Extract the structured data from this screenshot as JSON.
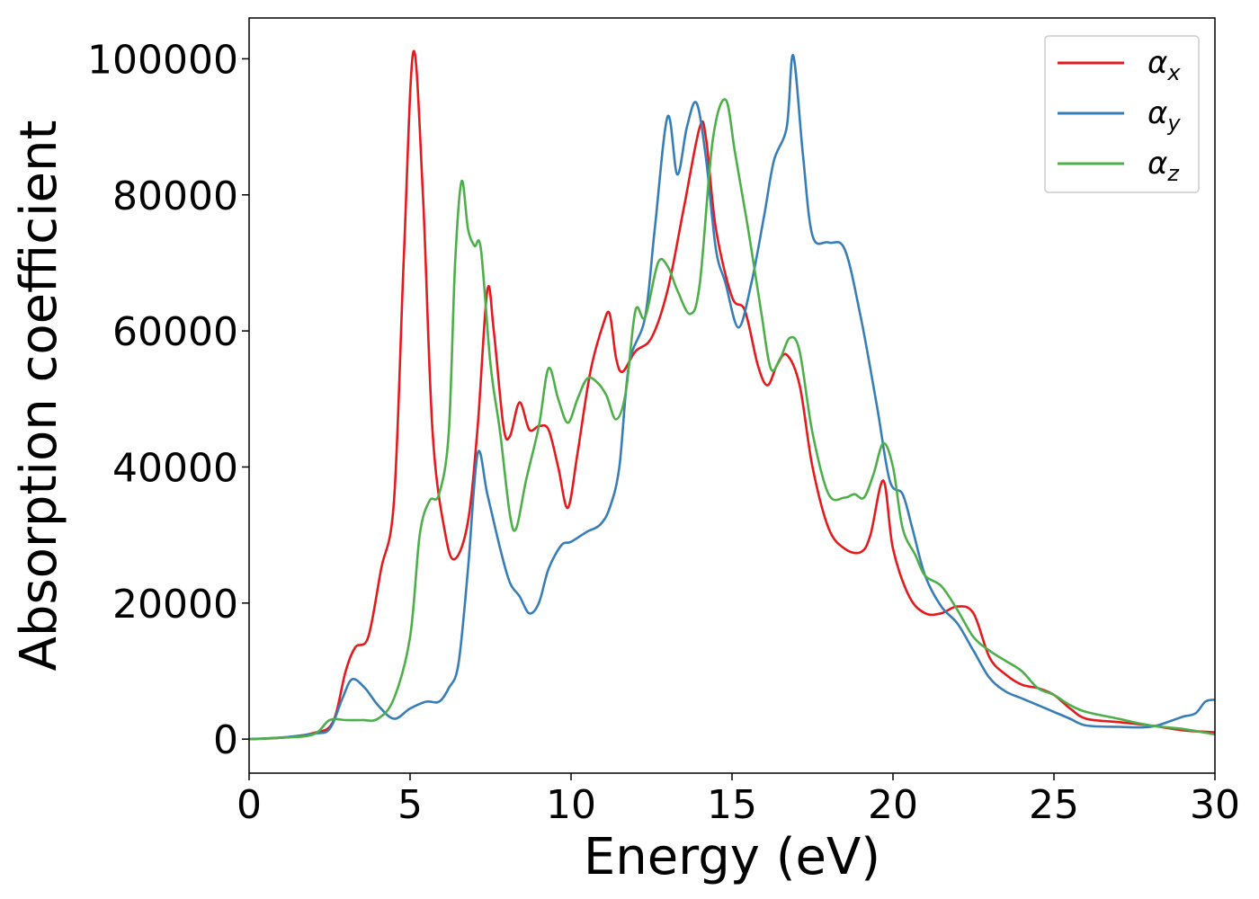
{
  "chart_data": {
    "type": "line",
    "title": "",
    "xlabel": "Energy (eV)",
    "ylabel": "Absorption coefficient",
    "xlim": [
      0,
      30
    ],
    "ylim": [
      -5000,
      106000
    ],
    "xticks": [
      0,
      5,
      10,
      15,
      20,
      25,
      30
    ],
    "yticks": [
      0,
      20000,
      40000,
      60000,
      80000,
      100000
    ],
    "grid": false,
    "legend": {
      "position": "top-right",
      "entries": [
        {
          "symbol": "α",
          "subscript": "x",
          "color": "#e41a1c"
        },
        {
          "symbol": "α",
          "subscript": "y",
          "color": "#377eb8"
        },
        {
          "symbol": "α",
          "subscript": "z",
          "color": "#4daf4a"
        }
      ]
    },
    "series": [
      {
        "name": "αx",
        "color": "#e41a1c",
        "points": [
          [
            0,
            0
          ],
          [
            1,
            200
          ],
          [
            2,
            900
          ],
          [
            2.6,
            2500
          ],
          [
            3,
            10000
          ],
          [
            3.3,
            13500
          ],
          [
            3.7,
            15000
          ],
          [
            4.1,
            25000
          ],
          [
            4.5,
            35000
          ],
          [
            4.8,
            70000
          ],
          [
            5.1,
            101000
          ],
          [
            5.4,
            80000
          ],
          [
            5.7,
            45000
          ],
          [
            6.1,
            30000
          ],
          [
            6.4,
            26500
          ],
          [
            6.8,
            32000
          ],
          [
            7.1,
            46000
          ],
          [
            7.4,
            66000
          ],
          [
            7.6,
            60000
          ],
          [
            7.9,
            46000
          ],
          [
            8.1,
            44500
          ],
          [
            8.4,
            49500
          ],
          [
            8.7,
            45500
          ],
          [
            9,
            46000
          ],
          [
            9.3,
            45500
          ],
          [
            9.6,
            40000
          ],
          [
            9.9,
            34000
          ],
          [
            10.2,
            42000
          ],
          [
            10.6,
            54000
          ],
          [
            11,
            61000
          ],
          [
            11.2,
            62500
          ],
          [
            11.4,
            56000
          ],
          [
            11.6,
            54000
          ],
          [
            12,
            57000
          ],
          [
            12.5,
            59000
          ],
          [
            13,
            66000
          ],
          [
            13.5,
            78000
          ],
          [
            14,
            90000
          ],
          [
            14.2,
            88000
          ],
          [
            14.5,
            75000
          ],
          [
            15,
            65000
          ],
          [
            15.4,
            63000
          ],
          [
            15.8,
            55000
          ],
          [
            16.1,
            52000
          ],
          [
            16.4,
            55000
          ],
          [
            16.7,
            56500
          ],
          [
            17.1,
            52000
          ],
          [
            17.5,
            40000
          ],
          [
            18,
            31000
          ],
          [
            18.5,
            28000
          ],
          [
            19,
            27500
          ],
          [
            19.3,
            30000
          ],
          [
            19.7,
            38000
          ],
          [
            20,
            28000
          ],
          [
            20.5,
            21000
          ],
          [
            21,
            18500
          ],
          [
            21.5,
            18500
          ],
          [
            22,
            19500
          ],
          [
            22.5,
            18500
          ],
          [
            23,
            12000
          ],
          [
            23.5,
            9500
          ],
          [
            24,
            8000
          ],
          [
            24.5,
            7500
          ],
          [
            25,
            6500
          ],
          [
            25.5,
            4500
          ],
          [
            26,
            3000
          ],
          [
            27,
            2500
          ],
          [
            28,
            2000
          ],
          [
            29,
            1300
          ],
          [
            30,
            1000
          ]
        ]
      },
      {
        "name": "αy",
        "color": "#377eb8",
        "points": [
          [
            0,
            0
          ],
          [
            1,
            250
          ],
          [
            2,
            800
          ],
          [
            2.5,
            1500
          ],
          [
            2.9,
            6000
          ],
          [
            3.2,
            8800
          ],
          [
            3.6,
            7500
          ],
          [
            4,
            5000
          ],
          [
            4.5,
            3000
          ],
          [
            5,
            4500
          ],
          [
            5.5,
            5500
          ],
          [
            5.9,
            5500
          ],
          [
            6.2,
            7500
          ],
          [
            6.5,
            11000
          ],
          [
            6.8,
            25000
          ],
          [
            7.1,
            42000
          ],
          [
            7.4,
            36000
          ],
          [
            7.8,
            28000
          ],
          [
            8.1,
            23000
          ],
          [
            8.4,
            21000
          ],
          [
            8.7,
            18500
          ],
          [
            9,
            20000
          ],
          [
            9.3,
            25000
          ],
          [
            9.7,
            28500
          ],
          [
            10,
            29000
          ],
          [
            10.5,
            30500
          ],
          [
            10.9,
            31500
          ],
          [
            11.2,
            34000
          ],
          [
            11.5,
            40000
          ],
          [
            11.8,
            55000
          ],
          [
            12.3,
            62000
          ],
          [
            12.6,
            75000
          ],
          [
            13,
            91500
          ],
          [
            13.3,
            83000
          ],
          [
            13.6,
            90000
          ],
          [
            13.9,
            93500
          ],
          [
            14.2,
            85000
          ],
          [
            14.5,
            72000
          ],
          [
            14.8,
            67000
          ],
          [
            15.2,
            60500
          ],
          [
            15.6,
            67000
          ],
          [
            16,
            77000
          ],
          [
            16.3,
            85000
          ],
          [
            16.7,
            90000
          ],
          [
            16.9,
            100500
          ],
          [
            17.2,
            86000
          ],
          [
            17.5,
            74000
          ],
          [
            18,
            73000
          ],
          [
            18.5,
            72000
          ],
          [
            19,
            62000
          ],
          [
            19.5,
            49000
          ],
          [
            19.9,
            38000
          ],
          [
            20.3,
            36000
          ],
          [
            20.6,
            31000
          ],
          [
            21,
            24000
          ],
          [
            21.5,
            19500
          ],
          [
            22,
            17000
          ],
          [
            22.5,
            13000
          ],
          [
            23,
            9000
          ],
          [
            23.5,
            7000
          ],
          [
            24,
            6000
          ],
          [
            24.5,
            5000
          ],
          [
            25,
            4000
          ],
          [
            25.5,
            3000
          ],
          [
            26,
            2000
          ],
          [
            27,
            1800
          ],
          [
            28,
            1800
          ],
          [
            28.7,
            2800
          ],
          [
            29,
            3300
          ],
          [
            29.4,
            3800
          ],
          [
            29.7,
            5500
          ],
          [
            30,
            5800
          ]
        ]
      },
      {
        "name": "αz",
        "color": "#4daf4a",
        "points": [
          [
            0,
            0
          ],
          [
            1,
            200
          ],
          [
            2,
            700
          ],
          [
            2.5,
            2800
          ],
          [
            3,
            2800
          ],
          [
            3.5,
            2800
          ],
          [
            4,
            3000
          ],
          [
            4.5,
            6000
          ],
          [
            5,
            15000
          ],
          [
            5.3,
            30000
          ],
          [
            5.6,
            35000
          ],
          [
            5.9,
            36000
          ],
          [
            6.2,
            45000
          ],
          [
            6.4,
            70000
          ],
          [
            6.6,
            82000
          ],
          [
            6.8,
            75000
          ],
          [
            7,
            72500
          ],
          [
            7.2,
            72000
          ],
          [
            7.5,
            55000
          ],
          [
            7.8,
            45000
          ],
          [
            8.1,
            33000
          ],
          [
            8.3,
            31000
          ],
          [
            8.6,
            38000
          ],
          [
            9,
            46000
          ],
          [
            9.3,
            54500
          ],
          [
            9.6,
            50000
          ],
          [
            9.9,
            46500
          ],
          [
            10.2,
            50000
          ],
          [
            10.5,
            53000
          ],
          [
            10.8,
            52500
          ],
          [
            11.1,
            50500
          ],
          [
            11.4,
            47000
          ],
          [
            11.7,
            51000
          ],
          [
            12,
            63000
          ],
          [
            12.3,
            62000
          ],
          [
            12.7,
            70000
          ],
          [
            13,
            69500
          ],
          [
            13.3,
            66000
          ],
          [
            13.7,
            62500
          ],
          [
            14,
            67000
          ],
          [
            14.4,
            88000
          ],
          [
            14.8,
            94000
          ],
          [
            15.1,
            86000
          ],
          [
            15.5,
            75000
          ],
          [
            15.9,
            63000
          ],
          [
            16.2,
            54500
          ],
          [
            16.5,
            56000
          ],
          [
            16.8,
            59000
          ],
          [
            17.1,
            57000
          ],
          [
            17.5,
            45000
          ],
          [
            18,
            36000
          ],
          [
            18.5,
            35500
          ],
          [
            18.8,
            36000
          ],
          [
            19.1,
            35500
          ],
          [
            19.4,
            39000
          ],
          [
            19.7,
            43500
          ],
          [
            20,
            40000
          ],
          [
            20.3,
            31000
          ],
          [
            20.7,
            27000
          ],
          [
            21,
            24000
          ],
          [
            21.5,
            22500
          ],
          [
            22,
            19000
          ],
          [
            22.5,
            15000
          ],
          [
            23,
            13000
          ],
          [
            23.5,
            11500
          ],
          [
            24,
            10000
          ],
          [
            24.5,
            7500
          ],
          [
            25,
            6500
          ],
          [
            25.5,
            5000
          ],
          [
            26,
            4000
          ],
          [
            27,
            3000
          ],
          [
            28,
            2000
          ],
          [
            29,
            1500
          ],
          [
            30,
            700
          ]
        ]
      }
    ]
  }
}
